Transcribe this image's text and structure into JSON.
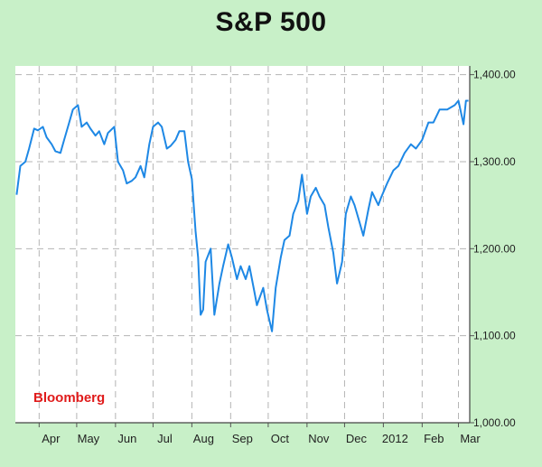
{
  "chart_data": {
    "type": "line",
    "title": "S&P 500",
    "source_label": "Bloomberg",
    "xlabel": "",
    "ylabel": "",
    "x_ticks": [
      "Apr",
      "May",
      "Jun",
      "Jul",
      "Aug",
      "Sep",
      "Oct",
      "Nov",
      "Dec",
      "2012",
      "Feb",
      "Mar"
    ],
    "y_ticks": [
      "1,400.00",
      "1,300.00",
      "1,200.00",
      "1,100.00",
      "1,000.00"
    ],
    "y_tick_values": [
      1400,
      1300,
      1200,
      1100,
      1000
    ],
    "ylim": [
      1000,
      1410
    ],
    "grid": true,
    "series": [
      {
        "x": [
          "2011-03-14",
          "2011-03-17",
          "2011-03-21",
          "2011-03-24",
          "2011-03-28",
          "2011-03-31",
          "2011-04-04",
          "2011-04-07",
          "2011-04-11",
          "2011-04-14",
          "2011-04-18",
          "2011-04-21",
          "2011-04-25",
          "2011-04-28",
          "2011-05-02",
          "2011-05-05",
          "2011-05-09",
          "2011-05-12",
          "2011-05-16",
          "2011-05-19",
          "2011-05-23",
          "2011-05-26",
          "2011-05-31",
          "2011-06-03",
          "2011-06-07",
          "2011-06-10",
          "2011-06-14",
          "2011-06-17",
          "2011-06-21",
          "2011-06-24",
          "2011-06-28",
          "2011-07-01",
          "2011-07-05",
          "2011-07-08",
          "2011-07-12",
          "2011-07-15",
          "2011-07-19",
          "2011-07-22",
          "2011-07-26",
          "2011-07-29",
          "2011-08-01",
          "2011-08-04",
          "2011-08-06",
          "2011-08-08",
          "2011-08-10",
          "2011-08-12",
          "2011-08-16",
          "2011-08-19",
          "2011-08-23",
          "2011-08-26",
          "2011-08-30",
          "2011-09-02",
          "2011-09-06",
          "2011-09-09",
          "2011-09-13",
          "2011-09-16",
          "2011-09-20",
          "2011-09-22",
          "2011-09-27",
          "2011-09-30",
          "2011-10-04",
          "2011-10-07",
          "2011-10-11",
          "2011-10-14",
          "2011-10-18",
          "2011-10-21",
          "2011-10-25",
          "2011-10-28",
          "2011-11-01",
          "2011-11-04",
          "2011-11-08",
          "2011-11-11",
          "2011-11-15",
          "2011-11-18",
          "2011-11-22",
          "2011-11-25",
          "2011-11-29",
          "2011-12-02",
          "2011-12-06",
          "2011-12-09",
          "2011-12-13",
          "2011-12-16",
          "2011-12-20",
          "2011-12-23",
          "2011-12-28",
          "2011-12-30",
          "2012-01-04",
          "2012-01-09",
          "2012-01-13",
          "2012-01-18",
          "2012-01-23",
          "2012-01-27",
          "2012-02-01",
          "2012-02-06",
          "2012-02-10",
          "2012-02-15",
          "2012-02-21",
          "2012-02-27",
          "2012-03-01",
          "2012-03-05",
          "2012-03-07",
          "2012-03-09"
        ],
        "y": [
          1262,
          1295,
          1300,
          1315,
          1338,
          1336,
          1340,
          1328,
          1320,
          1312,
          1310,
          1325,
          1345,
          1360,
          1365,
          1340,
          1345,
          1338,
          1330,
          1335,
          1320,
          1333,
          1340,
          1300,
          1290,
          1275,
          1278,
          1282,
          1295,
          1282,
          1320,
          1340,
          1345,
          1340,
          1315,
          1318,
          1325,
          1335,
          1335,
          1300,
          1280,
          1220,
          1190,
          1124,
          1130,
          1185,
          1200,
          1124,
          1160,
          1180,
          1205,
          1190,
          1165,
          1180,
          1165,
          1180,
          1150,
          1135,
          1155,
          1130,
          1105,
          1155,
          1190,
          1210,
          1215,
          1240,
          1255,
          1285,
          1240,
          1260,
          1270,
          1260,
          1250,
          1225,
          1195,
          1160,
          1185,
          1240,
          1260,
          1250,
          1230,
          1215,
          1245,
          1265,
          1250,
          1258,
          1275,
          1290,
          1295,
          1310,
          1320,
          1315,
          1325,
          1345,
          1345,
          1360,
          1360,
          1365,
          1370,
          1343,
          1370,
          1370
        ]
      }
    ]
  }
}
